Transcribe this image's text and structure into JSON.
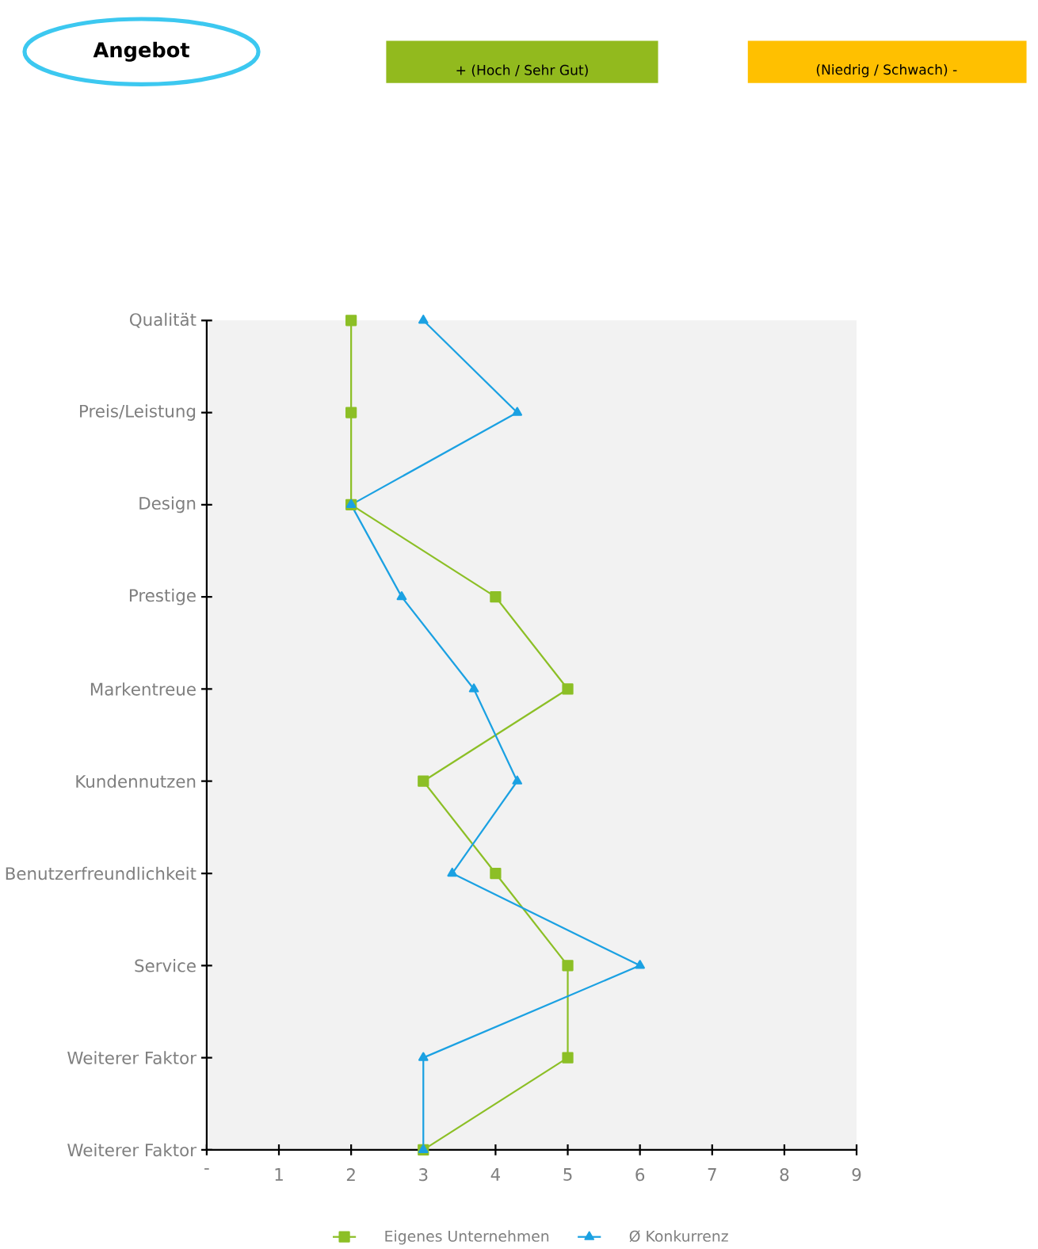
{
  "chart_data": {
    "type": "line",
    "orientation": "horizontal",
    "title": "Angebot",
    "annotations": [
      "+ (Hoch / Sehr Gut)",
      "(Niedrig / Schwach) -"
    ],
    "categories": [
      "Qualität",
      "Preis/Leistung",
      "Design",
      "Prestige",
      "Markentreue",
      "Kundennutzen",
      "Benutzerfreundlichkeit",
      "Service",
      "Weiterer Faktor",
      "Weiterer Faktor"
    ],
    "series": [
      {
        "name": "Eigenes Unternehmen",
        "color": "#8cbf26",
        "marker": "square",
        "values": [
          2,
          2,
          2,
          4,
          5,
          3,
          4,
          5,
          5,
          3
        ]
      },
      {
        "name": "Ø Konkurrenz",
        "color": "#1ba1e2",
        "marker": "triangle",
        "values": [
          3,
          4.3,
          2,
          2.7,
          3.7,
          4.3,
          3.4,
          6,
          3,
          3
        ]
      }
    ],
    "xlim": [
      0,
      9
    ],
    "xticks": [
      {
        "value": 0,
        "label": "-"
      },
      1,
      2,
      3,
      4,
      5,
      6,
      7,
      8,
      9
    ],
    "legend": "bottom",
    "line_style": "solid"
  }
}
